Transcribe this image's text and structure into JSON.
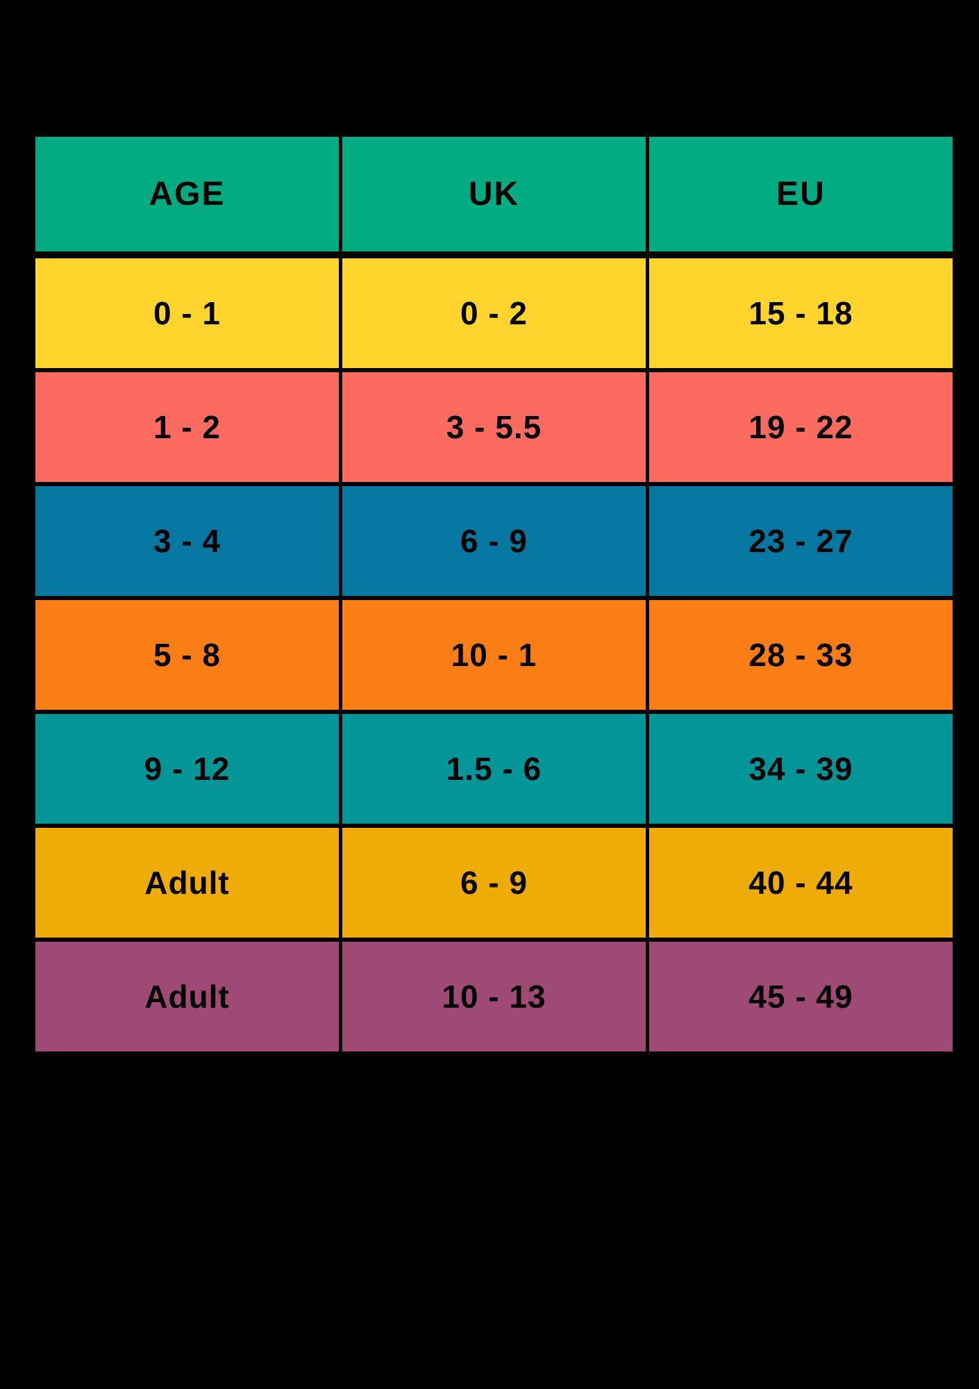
{
  "page": {
    "background_color": "#000000"
  },
  "chart_data": {
    "type": "table",
    "columns": [
      "AGE",
      "UK",
      "EU"
    ],
    "header_color": "#02AB81",
    "text_color": "#000000",
    "grid_color": "#000000",
    "rows": [
      {
        "color": "#FFD42D",
        "cells": [
          "0 - 1",
          "0 - 2",
          "15 - 18"
        ]
      },
      {
        "color": "#FC6B60",
        "cells": [
          "1 - 2",
          "3 - 5.5",
          "19 - 22"
        ]
      },
      {
        "color": "#0677A0",
        "cells": [
          "3 - 4",
          "6 - 9",
          "23 - 27"
        ]
      },
      {
        "color": "#FB7D15",
        "cells": [
          "5 - 8",
          "10 - 1",
          "28 - 33"
        ]
      },
      {
        "color": "#039598",
        "cells": [
          "9 - 12",
          "1.5 - 6",
          "34 - 39"
        ]
      },
      {
        "color": "#F0AC06",
        "cells": [
          "Adult",
          "6 - 9",
          "40 - 44"
        ]
      },
      {
        "color": "#9E4A75",
        "cells": [
          "Adult",
          "10 - 13",
          "45 - 49"
        ]
      }
    ]
  }
}
